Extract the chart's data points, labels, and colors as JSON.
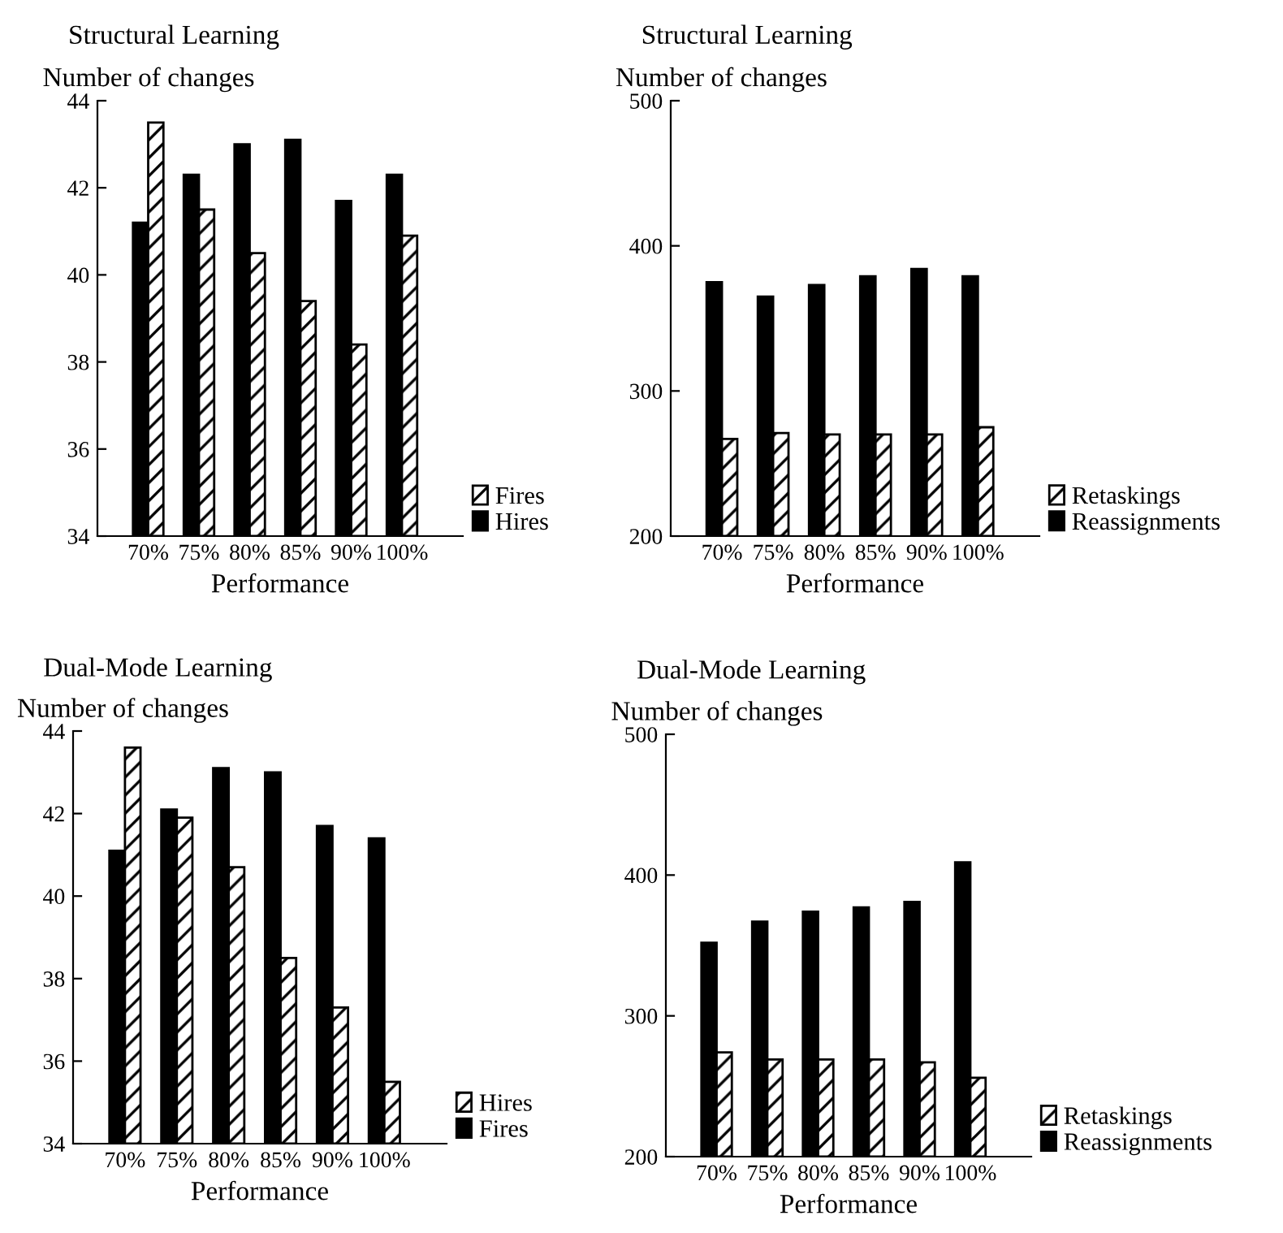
{
  "chart_data": [
    {
      "type": "bar",
      "title": "Structural Learning",
      "ylabel": "Number of changes",
      "xlabel": "Performance",
      "categories": [
        "70%",
        "75%",
        "80%",
        "85%",
        "90%",
        "100%"
      ],
      "ylim": [
        34,
        44
      ],
      "yticks": [
        34,
        36,
        38,
        40,
        42,
        44
      ],
      "legend": "right",
      "series": [
        {
          "name": "Hires",
          "color": "#000000",
          "values": [
            41.2,
            42.3,
            43.0,
            43.1,
            41.7,
            42.3
          ]
        },
        {
          "name": "Fires",
          "color": "#000000",
          "values": [
            43.5,
            41.5,
            40.5,
            39.4,
            38.4,
            40.9
          ]
        }
      ]
    },
    {
      "type": "bar",
      "title": "Structural Learning",
      "ylabel": "Number of changes",
      "xlabel": "Performance",
      "categories": [
        "70%",
        "75%",
        "80%",
        "85%",
        "90%",
        "100%"
      ],
      "ylim": [
        200,
        500
      ],
      "yticks": [
        200,
        300,
        400,
        500
      ],
      "legend": "right",
      "series": [
        {
          "name": "Reassignments",
          "color": "#000000",
          "values": [
            375,
            365,
            373,
            379,
            384,
            379
          ]
        },
        {
          "name": "Retaskings",
          "color": "#000000",
          "values": [
            267,
            271,
            270,
            270,
            270,
            275
          ]
        }
      ]
    },
    {
      "type": "bar",
      "title": "Dual-Mode Learning",
      "ylabel": "Number of changes",
      "xlabel": "Performance",
      "categories": [
        "70%",
        "75%",
        "80%",
        "85%",
        "90%",
        "100%"
      ],
      "ylim": [
        34,
        44
      ],
      "yticks": [
        34,
        36,
        38,
        40,
        42,
        44
      ],
      "legend": "right",
      "series": [
        {
          "name": "Fires",
          "color": "#000000",
          "values": [
            41.1,
            42.1,
            43.1,
            43.0,
            41.7,
            41.4
          ]
        },
        {
          "name": "Hires",
          "color": "#000000",
          "values": [
            43.6,
            41.9,
            40.7,
            38.5,
            37.3,
            35.5
          ]
        }
      ]
    },
    {
      "type": "bar",
      "title": "Dual-Mode Learning",
      "ylabel": "Number of changes",
      "xlabel": "Performance",
      "categories": [
        "70%",
        "75%",
        "80%",
        "85%",
        "90%",
        "100%"
      ],
      "ylim": [
        200,
        500
      ],
      "yticks": [
        200,
        300,
        400,
        500
      ],
      "legend": "right",
      "series": [
        {
          "name": "Reassignments",
          "color": "#000000",
          "values": [
            352,
            367,
            374,
            377,
            381,
            409
          ]
        },
        {
          "name": "Retaskings",
          "color": "#000000",
          "values": [
            274,
            269,
            269,
            269,
            267,
            256
          ]
        }
      ]
    }
  ]
}
